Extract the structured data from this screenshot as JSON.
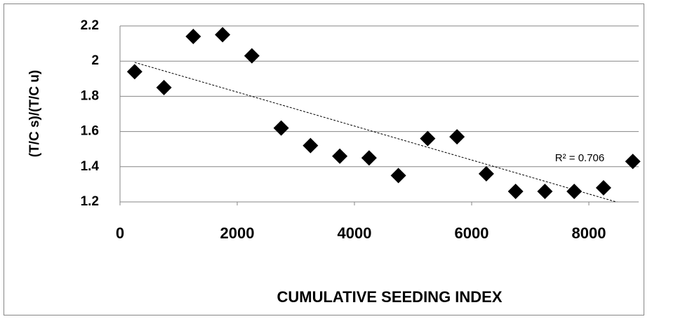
{
  "chart_data": {
    "type": "scatter",
    "x_label": "CUMULATIVE SEEDING INDEX",
    "y_label": "(T/C s)/(T/C u)",
    "x": [
      250,
      750,
      1250,
      1750,
      2250,
      2750,
      3250,
      3750,
      4250,
      4750,
      5250,
      5750,
      6250,
      6750,
      7250,
      7750,
      8250,
      8750
    ],
    "values": [
      1.94,
      1.85,
      2.14,
      2.15,
      2.03,
      1.62,
      1.52,
      1.46,
      1.45,
      1.35,
      1.56,
      1.57,
      1.36,
      1.26,
      1.26,
      1.26,
      1.28,
      1.43
    ],
    "color": "#000000",
    "xlim": [
      0,
      8850
    ],
    "ylim": [
      1.2,
      2.2
    ],
    "xticks": [
      0,
      2000,
      4000,
      6000,
      8000
    ],
    "yticks": [
      1.2,
      1.4,
      1.6,
      1.8,
      2,
      2.2
    ],
    "grid": true,
    "trendline": "linear",
    "annotation": "R² = 0.706"
  }
}
